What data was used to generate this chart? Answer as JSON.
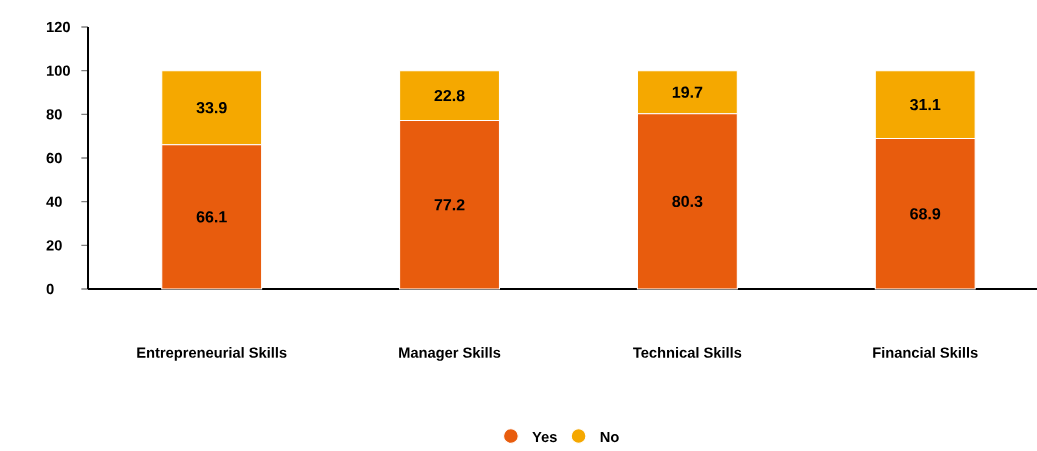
{
  "chart_data": {
    "type": "bar",
    "stacked": true,
    "categories": [
      "Entrepreneurial Skills",
      "Manager Skills",
      "Technical Skills",
      "Financial Skills"
    ],
    "series": [
      {
        "name": "Yes",
        "color": "#e85c0d",
        "values": [
          66.1,
          77.2,
          80.3,
          68.9
        ]
      },
      {
        "name": "No",
        "color": "#f5a800",
        "values": [
          33.9,
          22.8,
          19.7,
          31.1
        ]
      }
    ],
    "ylim": [
      0,
      120
    ],
    "yticks": [
      0,
      20,
      40,
      60,
      80,
      100,
      120
    ],
    "data_labels": true,
    "legend": "bottom"
  }
}
